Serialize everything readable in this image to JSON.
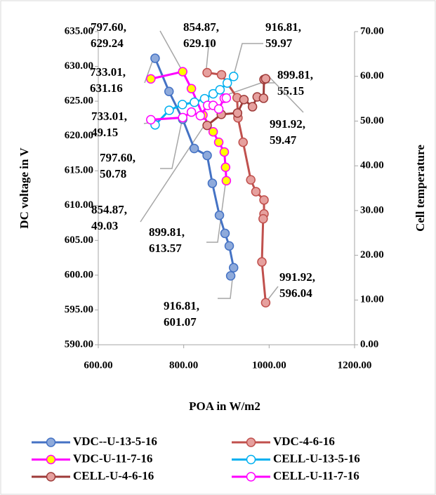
{
  "chart_data": {
    "type": "line",
    "xlabel": "POA in W/m2",
    "ylabel": "DC voltage in V",
    "y2label": "Cell temperature",
    "xlim": [
      600,
      1200
    ],
    "xticks": [
      {
        "value": 600,
        "label": "600.00"
      },
      {
        "value": 800,
        "label": "800.00"
      },
      {
        "value": 1000,
        "label": "1000.00"
      },
      {
        "value": 1200,
        "label": "1200.00"
      }
    ],
    "ylim": [
      590,
      635
    ],
    "yticks": [
      {
        "value": 590,
        "label": "590.00"
      },
      {
        "value": 595,
        "label": "595.00"
      },
      {
        "value": 600,
        "label": "600.00"
      },
      {
        "value": 605,
        "label": "605.00"
      },
      {
        "value": 610,
        "label": "610.00"
      },
      {
        "value": 615,
        "label": "615.00"
      },
      {
        "value": 620,
        "label": "620.00"
      },
      {
        "value": 625,
        "label": "625.00"
      },
      {
        "value": 630,
        "label": "630.00"
      },
      {
        "value": 635,
        "label": "635.00"
      }
    ],
    "y2lim": [
      0,
      70
    ],
    "y2ticks": [
      {
        "value": 0,
        "label": "0.00"
      },
      {
        "value": 10,
        "label": "10.00"
      },
      {
        "value": 20,
        "label": "20.00"
      },
      {
        "value": 30,
        "label": "30.00"
      },
      {
        "value": 40,
        "label": "40.00"
      },
      {
        "value": 50,
        "label": "50.00"
      },
      {
        "value": 60,
        "label": "60.00"
      },
      {
        "value": 70,
        "label": "70.00"
      }
    ],
    "legend": "bottom",
    "series": [
      {
        "name": "VDC--U-13-5-16",
        "color": "#4472c4",
        "marker_color": "#8eaadb",
        "x": [
          733.01,
          765.6,
          797.6,
          824.6,
          854.87,
          867,
          883.6,
          896.7,
          906.6,
          916.81,
          910
        ],
        "values": [
          631.16,
          626.4,
          622.4,
          618.2,
          617.2,
          613.2,
          608.6,
          606.0,
          604.2,
          601.07,
          599.9
        ]
      },
      {
        "name": "VDC-4-6-16",
        "color": "#c0504d",
        "marker_color": "#e6a09e",
        "x": [
          854.87,
          888.5,
          925,
          927,
          939,
          957,
          969,
          988,
          988,
          986,
          983,
          991.92
        ],
        "values": [
          629.1,
          628.8,
          625.5,
          622.6,
          619.1,
          613.7,
          612.0,
          610.8,
          608.8,
          608.1,
          601.9,
          596.04
        ]
      },
      {
        "name": "VDC-U-11-7-16",
        "color": "#ff00ff",
        "marker_color": "#ffff00",
        "x": [
          723,
          797.6,
          818,
          845,
          869,
          882,
          895,
          898,
          899.81
        ],
        "values": [
          628.2,
          629.24,
          626.8,
          623.0,
          620.6,
          619.1,
          617.7,
          615.5,
          613.57
        ]
      },
      {
        "name": "CELL-U-13-5-16",
        "color": "#00b0f0",
        "marker_color": "#ffffff",
        "axis": "y2",
        "x": [
          733.01,
          766,
          797,
          825,
          849,
          869,
          885,
          902,
          916.81
        ],
        "values": [
          49.15,
          52.4,
          53.7,
          54.2,
          55.0,
          56.1,
          57.0,
          58.5,
          59.97
        ]
      },
      {
        "name": "CELL-U-4-6-16",
        "color": "#9e3b39",
        "marker_color": "#e6a09e",
        "axis": "y2",
        "x": [
          854.87,
          888,
          926,
          941,
          961,
          972,
          987,
          988,
          991.92
        ],
        "values": [
          49.03,
          51.5,
          51.8,
          54.8,
          53.2,
          55.4,
          55.1,
          59.3,
          59.47
        ]
      },
      {
        "name": "CELL-U-11-7-16",
        "color": "#ff00ff",
        "marker_color": "#ffffff",
        "axis": "y2",
        "x": [
          723,
          797.6,
          818,
          839,
          856,
          869,
          882,
          895,
          899.81
        ],
        "values": [
          50.3,
          50.78,
          52.0,
          51.2,
          53.5,
          53.5,
          52.7,
          55.1,
          55.15
        ]
      }
    ],
    "annotations": [
      {
        "lines": [
          "797.60,",
          "629.24"
        ]
      },
      {
        "lines": [
          "854.87,",
          "629.10"
        ]
      },
      {
        "lines": [
          "916.81,",
          "59.97"
        ]
      },
      {
        "lines": [
          "733.01,",
          "631.16"
        ]
      },
      {
        "lines": [
          "899.81,",
          "55.15"
        ]
      },
      {
        "lines": [
          "733.01,",
          "49.15"
        ]
      },
      {
        "lines": [
          "991.92,",
          "59.47"
        ]
      },
      {
        "lines": [
          "797.60,",
          "50.78"
        ]
      },
      {
        "lines": [
          "854.87,",
          "49.03"
        ]
      },
      {
        "lines": [
          "899.81,",
          "613.57"
        ]
      },
      {
        "lines": [
          "991.92,",
          "596.04"
        ]
      },
      {
        "lines": [
          "916.81,",
          "601.07"
        ]
      }
    ]
  }
}
